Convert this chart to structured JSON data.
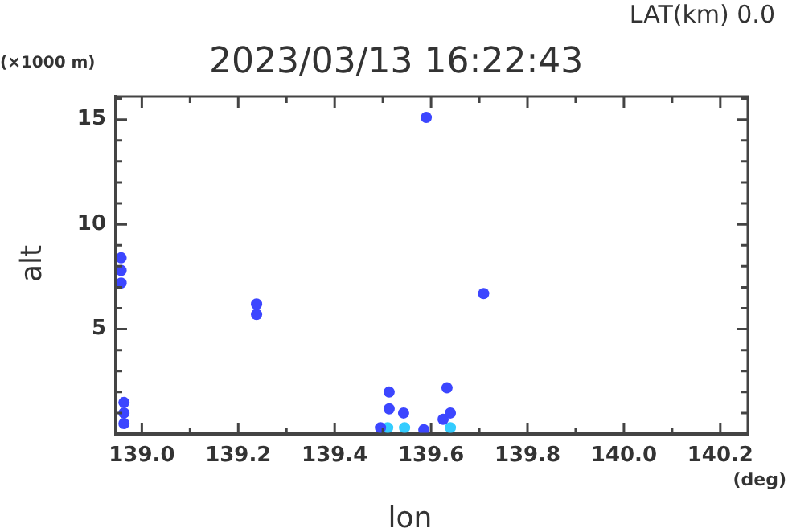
{
  "chart_data": {
    "type": "scatter",
    "title": "2023/03/13 16:22:43",
    "xlabel": "lon",
    "ylabel": "alt",
    "annotations": [
      "LAT(km) 0.0",
      "(×1000 m)",
      "(deg)"
    ],
    "series": [
      {
        "color": "#3c46ff",
        "x": [
          138.957,
          138.957,
          138.957,
          138.963,
          138.963,
          138.963,
          139.238,
          139.238,
          139.59,
          139.495,
          139.513,
          139.513,
          139.543,
          139.625,
          139.64,
          139.633,
          139.709,
          139.585
        ],
        "values": [
          7.2,
          7.8,
          8.4,
          0.5,
          1.0,
          1.5,
          5.7,
          6.2,
          15.1,
          0.3,
          1.2,
          2.0,
          1.0,
          0.7,
          1.0,
          2.2,
          6.7,
          0.2
        ]
      },
      {
        "color": "#33ccff",
        "x": [
          139.51,
          139.545,
          139.64
        ],
        "values": [
          0.3,
          0.3,
          0.3
        ]
      }
    ],
    "marker": "circle",
    "grid": false,
    "legend": false,
    "xlim": [
      138.946,
      140.257
    ],
    "ylim": [
      0,
      16.1
    ],
    "xticks": [
      {
        "value": 139,
        "label": "139.0"
      },
      {
        "value": 139.1,
        "label": null
      },
      {
        "value": 139.2,
        "label": "139.2"
      },
      {
        "value": 139.3,
        "label": null
      },
      {
        "value": 139.4,
        "label": "139.4"
      },
      {
        "value": 139.5,
        "label": null
      },
      {
        "value": 139.6,
        "label": "139.6"
      },
      {
        "value": 139.7,
        "label": null
      },
      {
        "value": 139.8,
        "label": "139.8"
      },
      {
        "value": 139.9,
        "label": null
      },
      {
        "value": 140,
        "label": "140.0"
      },
      {
        "value": 140.1,
        "label": null
      },
      {
        "value": 140.2,
        "label": "140.2"
      }
    ],
    "yticks": [
      {
        "value": 1,
        "label": null
      },
      {
        "value": 2,
        "label": null
      },
      {
        "value": 3,
        "label": null
      },
      {
        "value": 4,
        "label": null
      },
      5,
      {
        "value": 6,
        "label": null
      },
      {
        "value": 7,
        "label": null
      },
      {
        "value": 8,
        "label": null
      },
      {
        "value": 9,
        "label": null
      },
      10,
      {
        "value": 11,
        "label": null
      },
      {
        "value": 12,
        "label": null
      },
      {
        "value": 13,
        "label": null
      },
      {
        "value": 14,
        "label": null
      },
      15,
      {
        "value": 16,
        "label": null
      }
    ]
  }
}
